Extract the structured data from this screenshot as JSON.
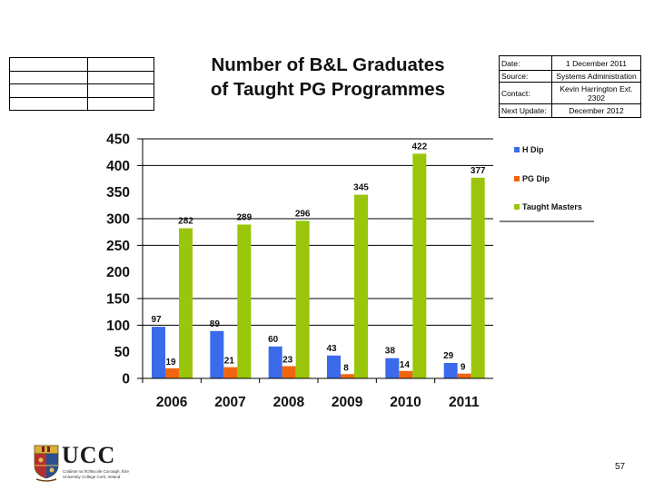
{
  "slide": {
    "title_line1": "Number of B&L Graduates",
    "title_line2": "of Taught PG Programmes",
    "page_number": "57"
  },
  "info_table": {
    "rows": [
      {
        "label": "Date:",
        "value": "1 December 2011"
      },
      {
        "label": "Source:",
        "value": "Systems Administration"
      },
      {
        "label": "Contact:",
        "value": "Kevin Harrington Ext. 2302"
      },
      {
        "label": "Next Update:",
        "value": "December 2012"
      }
    ]
  },
  "logo": {
    "name": "UCC",
    "sub1": "Coláiste na hOllscoile Corcaigh, Éire",
    "sub2": "University College Cork, Ireland"
  },
  "colors": {
    "h_dip": "#3B6BEA",
    "pg_dip": "#F2650F",
    "taught_masters": "#99C60A"
  },
  "chart_data": {
    "type": "bar",
    "title": "Number of B&L Graduates of Taught PG Programmes",
    "xlabel": "",
    "ylabel": "",
    "categories": [
      "2006",
      "2007",
      "2008",
      "2009",
      "2010",
      "2011"
    ],
    "series": [
      {
        "name": "H Dip",
        "color": "#3B6BEA",
        "values": [
          97,
          89,
          60,
          43,
          38,
          29
        ]
      },
      {
        "name": "PG Dip",
        "color": "#F2650F",
        "values": [
          19,
          21,
          23,
          8,
          14,
          9
        ]
      },
      {
        "name": "Taught Masters",
        "color": "#99C60A",
        "values": [
          282,
          289,
          296,
          345,
          422,
          377
        ]
      }
    ],
    "ylim": [
      0,
      450
    ],
    "yticks": [
      0,
      50,
      100,
      150,
      200,
      250,
      300,
      350,
      400,
      450
    ],
    "gridlines_at": [
      100,
      150,
      250,
      300,
      400,
      450
    ],
    "legend_position": "right",
    "data_labels": true
  }
}
